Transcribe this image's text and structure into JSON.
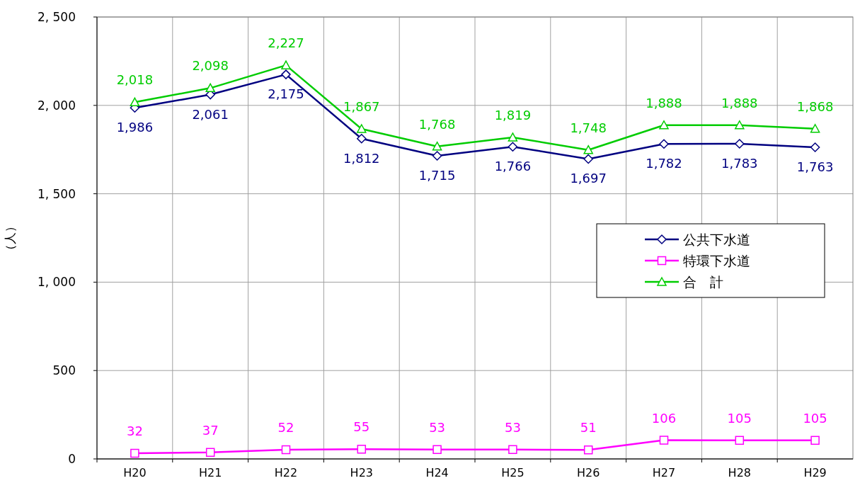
{
  "chart_data": {
    "type": "line",
    "ylabel": "（人）",
    "categories": [
      "H20",
      "H21",
      "H22",
      "H23",
      "H24",
      "H25",
      "H26",
      "H27",
      "H28",
      "H29"
    ],
    "series": [
      {
        "name": "公共下水道",
        "color": "#000080",
        "marker": "diamond",
        "values": [
          1986,
          2061,
          2175,
          1812,
          1715,
          1766,
          1697,
          1782,
          1783,
          1763
        ],
        "value_labels": [
          "1,986",
          "2,061",
          "2,175",
          "1,812",
          "1,715",
          "1,766",
          "1,697",
          "1,782",
          "1,783",
          "1,763"
        ]
      },
      {
        "name": "特環下水道",
        "color": "#ff00ff",
        "marker": "square",
        "values": [
          32,
          37,
          52,
          55,
          53,
          53,
          51,
          106,
          105,
          105
        ]
      },
      {
        "name": "合　計",
        "color": "#00cc00",
        "marker": "triangle",
        "values": [
          2018,
          2098,
          2227,
          1867,
          1768,
          1819,
          1748,
          1888,
          1888,
          1868
        ],
        "value_labels": [
          "2,018",
          "2,098",
          "2,227",
          "1,867",
          "1,768",
          "1,819",
          "1,748",
          "1,888",
          "1,888",
          "1,868"
        ]
      }
    ],
    "ylim": [
      0,
      2500
    ],
    "yticks": [
      {
        "value": 0,
        "label": "0"
      },
      {
        "value": 500,
        "label": "500"
      },
      {
        "value": 1000,
        "label": "1, 000"
      },
      {
        "value": 1500,
        "label": "1, 500"
      },
      {
        "value": 2000,
        "label": "2, 000"
      },
      {
        "value": 2500,
        "label": "2, 500"
      }
    ],
    "grid": true,
    "legend": "right",
    "data_labels": true,
    "line_style": "solid"
  }
}
